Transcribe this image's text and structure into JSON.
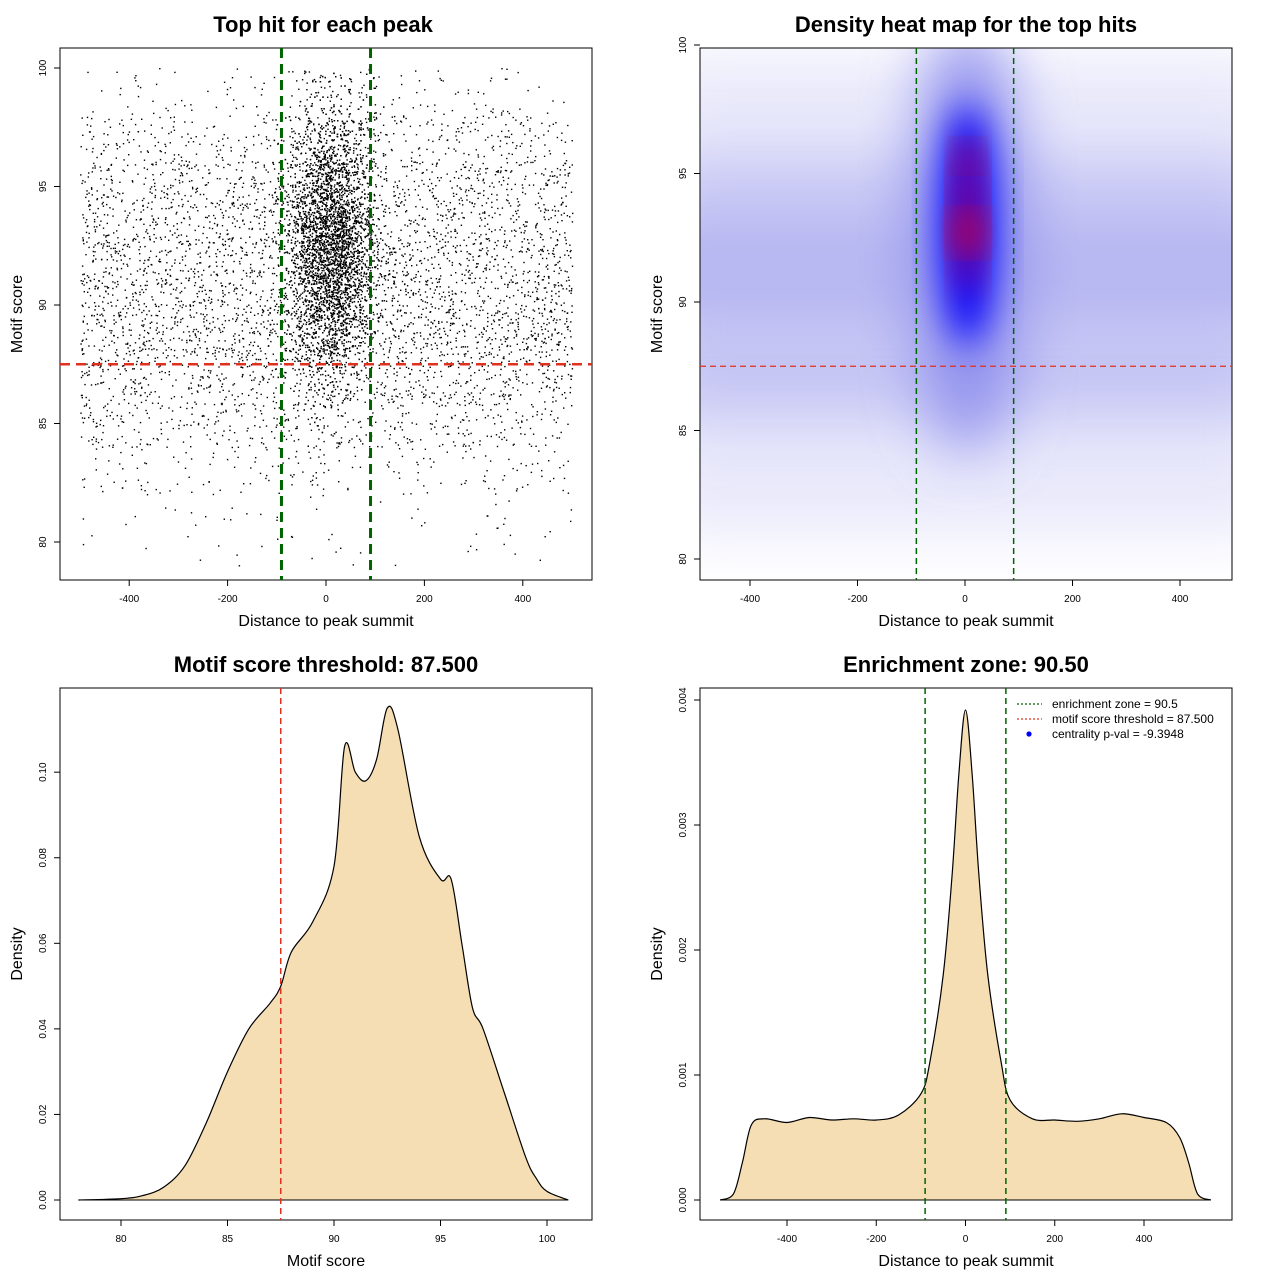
{
  "chart_data": [
    {
      "type": "scatter",
      "title": "Top hit for each peak",
      "xlabel": "Distance to peak summit",
      "ylabel": "Motif score",
      "xlim": [
        -500,
        500
      ],
      "ylim": [
        79,
        100
      ],
      "xticks": [
        -400,
        -200,
        0,
        200,
        400
      ],
      "yticks": [
        80,
        85,
        90,
        95,
        100
      ],
      "vlines": [
        -90.5,
        90.5
      ],
      "hline": 87.5,
      "colors": {
        "points": "#000000",
        "vline": "#006400",
        "hline": "#e0301e"
      },
      "series_description": {
        "x_range": [
          -500,
          500
        ],
        "y_range": [
          79.2,
          100
        ],
        "central_concentration_x": [
          -60,
          80
        ],
        "y_bands": [
          {
            "y_from": 79,
            "y_to": 82,
            "relative_density": 0.05
          },
          {
            "y_from": 82,
            "y_to": 84,
            "relative_density": 0.2
          },
          {
            "y_from": 84,
            "y_to": 86,
            "relative_density": 0.5
          },
          {
            "y_from": 86,
            "y_to": 88,
            "relative_density": 0.75
          },
          {
            "y_from": 88,
            "y_to": 93,
            "relative_density": 1.0
          },
          {
            "y_from": 93,
            "y_to": 96,
            "relative_density": 0.8
          },
          {
            "y_from": 96,
            "y_to": 98,
            "relative_density": 0.45
          },
          {
            "y_from": 98,
            "y_to": 100,
            "relative_density": 0.15
          }
        ]
      }
    },
    {
      "type": "heatmap",
      "title": "Density heat map for the top hits",
      "xlabel": "Distance to peak summit",
      "ylabel": "Motif score",
      "xlim": [
        -500,
        500
      ],
      "ylim": [
        79.2,
        100
      ],
      "xticks": [
        -400,
        -200,
        0,
        200,
        400
      ],
      "yticks": [
        80,
        85,
        90,
        95,
        100
      ],
      "vlines": [
        -90.5,
        90.5
      ],
      "hline": 87.5,
      "colors": {
        "low": "#ffffff",
        "mid": "#0000ff",
        "high": "#ff0000",
        "vline": "#006400",
        "hline": "#e0301e"
      },
      "hotspot": {
        "x": 5,
        "y": 92.7
      },
      "series_description": {
        "central_column_x": [
          -30,
          40
        ],
        "central_column_y": [
          88.5,
          98.5
        ],
        "background_band_y": [
          86,
          96
        ]
      }
    },
    {
      "type": "area",
      "title": "Motif score threshold: 87.500",
      "xlabel": "Motif score",
      "ylabel": "Density",
      "xlim": [
        78,
        101
      ],
      "ylim": [
        0,
        0.115
      ],
      "xticks": [
        80,
        85,
        90,
        95,
        100
      ],
      "yticks": [
        0.0,
        0.02,
        0.04,
        0.06,
        0.08,
        0.1
      ],
      "ytick_labels": [
        "0.00",
        "0.02",
        "0.04",
        "0.06",
        "0.08",
        "0.10"
      ],
      "vline": 87.5,
      "colors": {
        "fill": "#f5deb3",
        "line": "#000000",
        "vline": "#e0301e"
      },
      "x": [
        78,
        80,
        81,
        82,
        83,
        84,
        85,
        86,
        87,
        87.5,
        88,
        89,
        90,
        90.5,
        91,
        91.5,
        92,
        92.5,
        93,
        94,
        95,
        95.5,
        96,
        96.5,
        97,
        98,
        99,
        99.5,
        100,
        101
      ],
      "y": [
        0.0,
        0.0003,
        0.001,
        0.003,
        0.008,
        0.018,
        0.03,
        0.04,
        0.046,
        0.05,
        0.058,
        0.065,
        0.078,
        0.106,
        0.1,
        0.098,
        0.103,
        0.115,
        0.11,
        0.085,
        0.075,
        0.075,
        0.06,
        0.045,
        0.04,
        0.025,
        0.01,
        0.005,
        0.002,
        0.0
      ]
    },
    {
      "type": "area",
      "title": "Enrichment zone: 90.50",
      "xlabel": "Distance to peak summit",
      "ylabel": "Density",
      "xlim": [
        -550,
        550
      ],
      "ylim": [
        0,
        0.0039
      ],
      "xticks": [
        -400,
        -200,
        0,
        200,
        400
      ],
      "yticks": [
        0.0,
        0.001,
        0.002,
        0.003,
        0.004
      ],
      "ytick_labels": [
        "0.000",
        "0.001",
        "0.002",
        "0.003",
        "0.004"
      ],
      "vlines": [
        -90.5,
        90.5
      ],
      "colors": {
        "fill": "#f5deb3",
        "line": "#000000",
        "vline": "#006400",
        "legend_threshold": "#e0301e",
        "legend_pval": "#0000ff"
      },
      "legend": {
        "position": "top-right",
        "items": [
          {
            "label": "enrichment zone = 90.5",
            "style": "dotted",
            "color": "#006400"
          },
          {
            "label": "motif score threshold = 87.500",
            "style": "dotted",
            "color": "#e0301e"
          },
          {
            "label": "centrality p-val = -9.3948",
            "style": "point",
            "color": "#0000ff"
          }
        ]
      },
      "x": [
        -550,
        -520,
        -500,
        -480,
        -450,
        -400,
        -350,
        -300,
        -250,
        -200,
        -150,
        -100,
        -80,
        -50,
        -30,
        -15,
        0,
        15,
        30,
        50,
        80,
        100,
        150,
        200,
        250,
        300,
        350,
        400,
        450,
        480,
        500,
        520,
        550
      ],
      "y": [
        0.0,
        5e-05,
        0.0003,
        0.0006,
        0.00065,
        0.00062,
        0.00066,
        0.00064,
        0.00065,
        0.00064,
        0.00068,
        0.00085,
        0.0011,
        0.0018,
        0.0026,
        0.0034,
        0.00392,
        0.0034,
        0.0026,
        0.0018,
        0.0011,
        0.0008,
        0.00065,
        0.00064,
        0.00063,
        0.00065,
        0.00069,
        0.00066,
        0.00062,
        0.0005,
        0.0003,
        5e-05,
        0.0
      ]
    }
  ]
}
